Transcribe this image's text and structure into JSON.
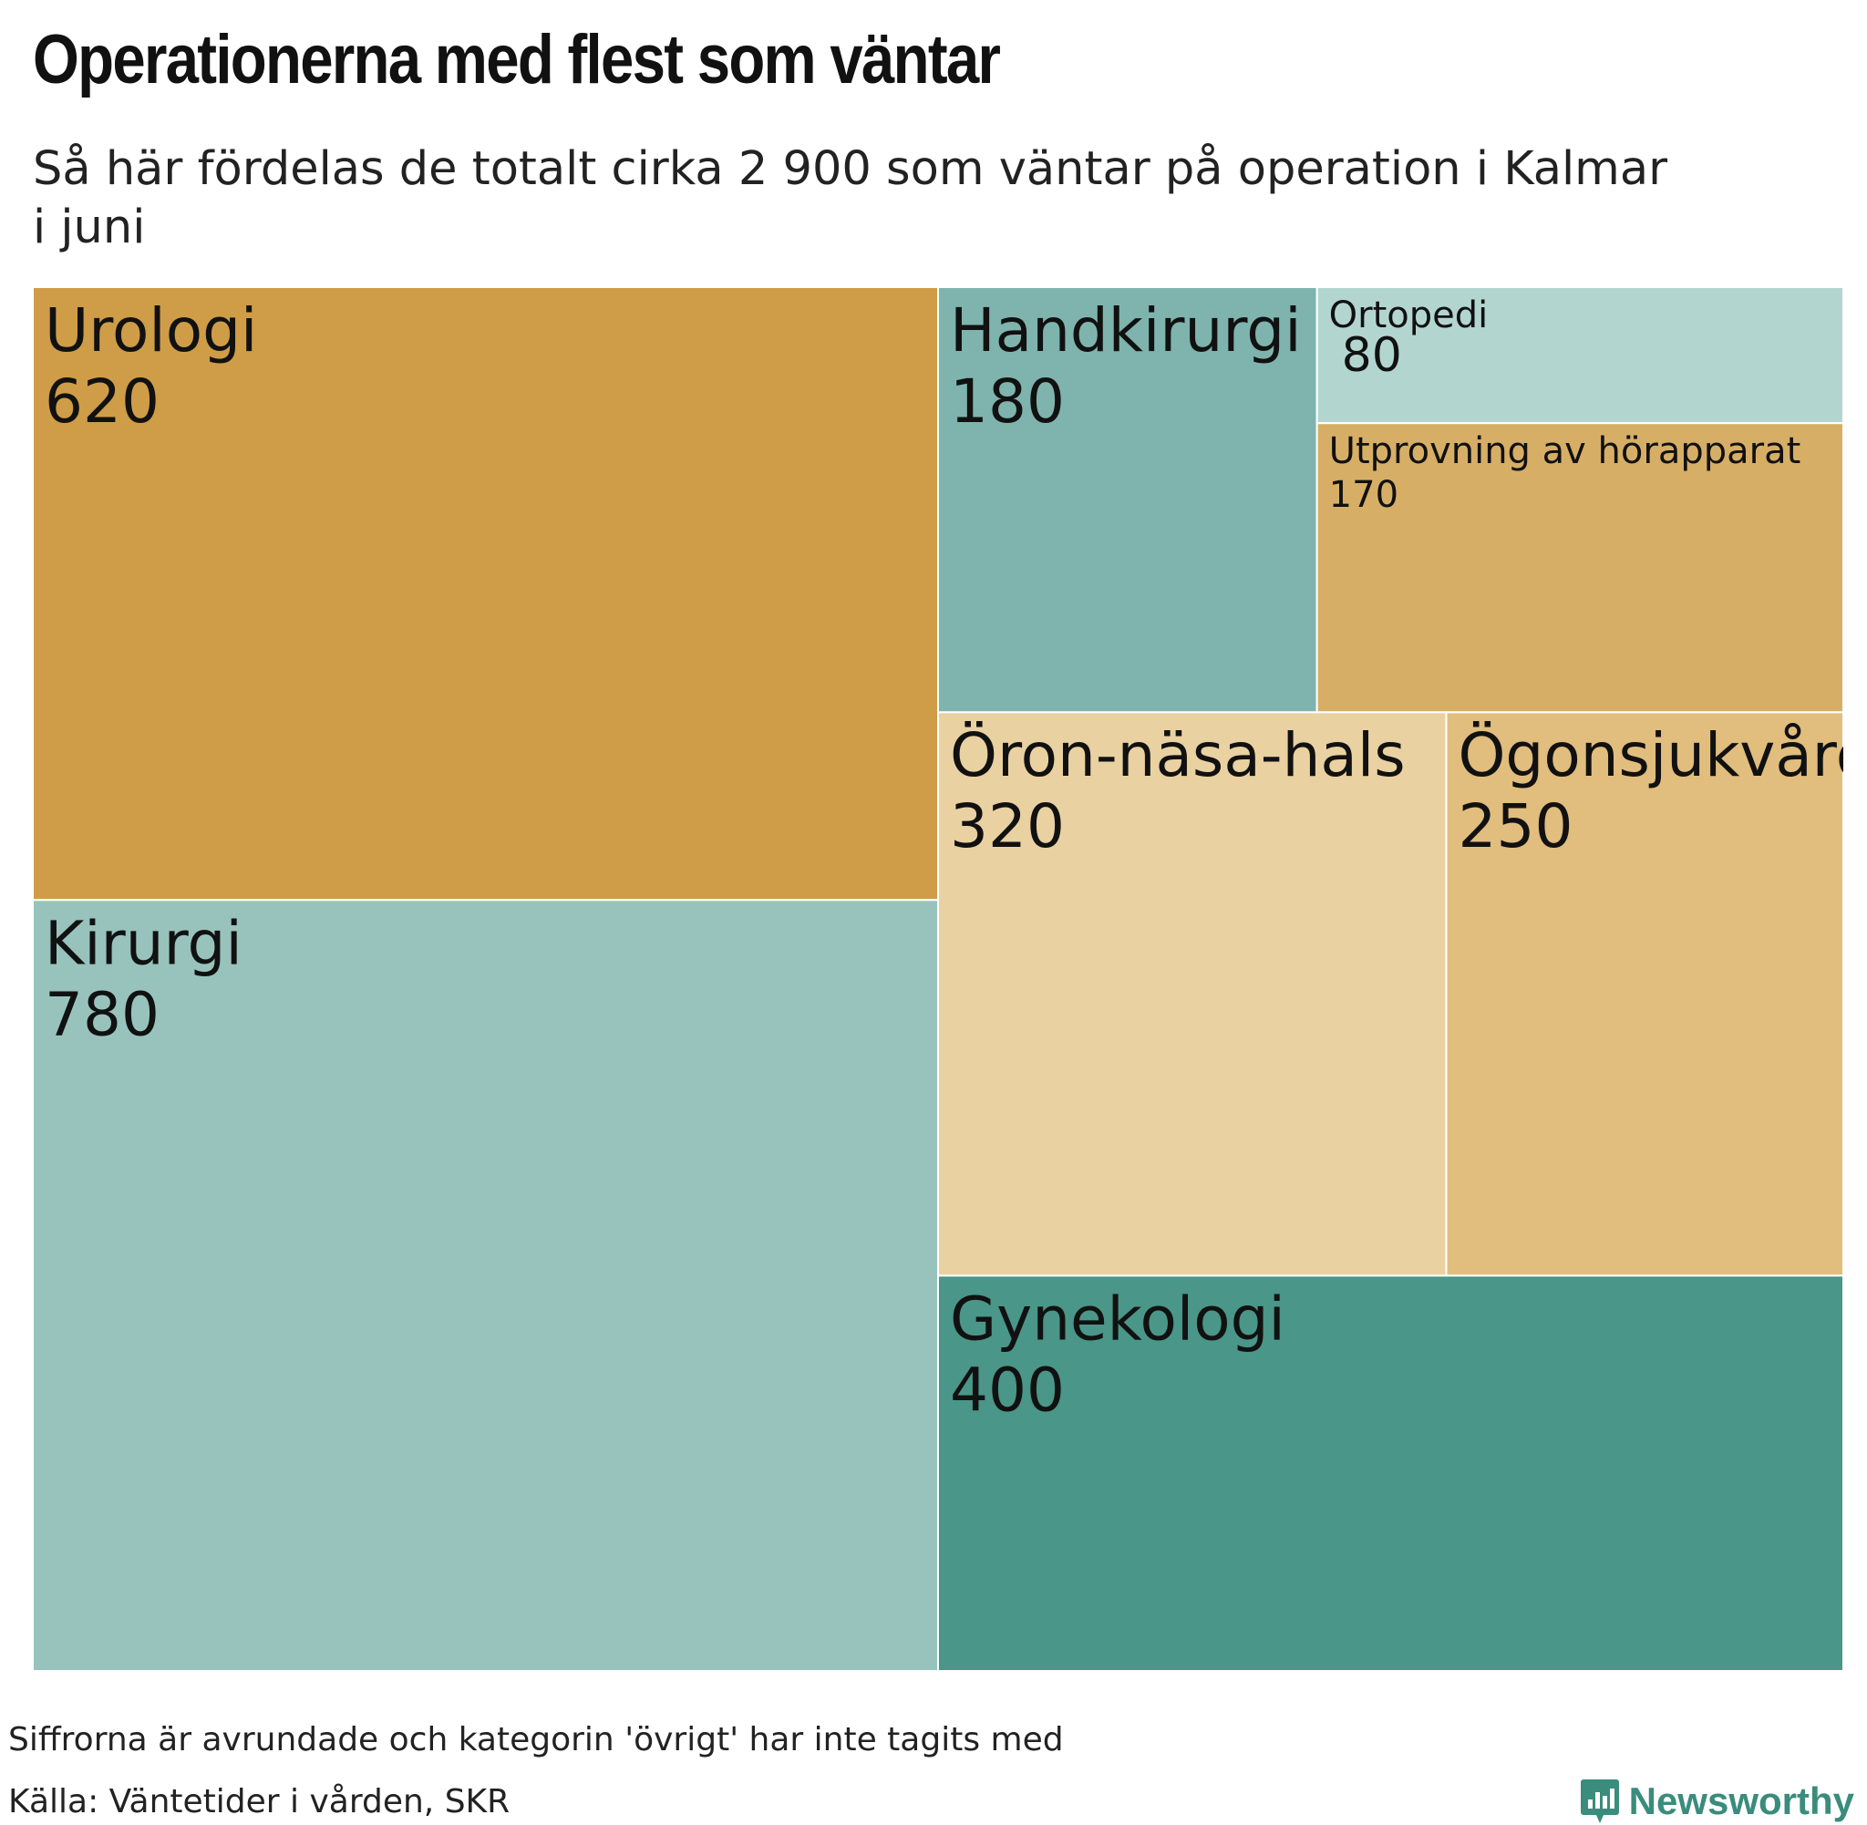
{
  "header": {
    "title": "Operationerna med flest som väntar",
    "subtitle": "Så här fördelas de totalt cirka 2 900 som väntar på operation i Kalmar i juni"
  },
  "chart_data": {
    "type": "treemap",
    "items": [
      {
        "name": "Kirurgi",
        "value": 780,
        "color": "#98c3bd"
      },
      {
        "name": "Urologi",
        "value": 620,
        "color": "#cf9d47"
      },
      {
        "name": "Gynekologi",
        "value": 400,
        "color": "#4a9688"
      },
      {
        "name": "Öron-näsa-hals",
        "value": 320,
        "color": "#e9d1a1"
      },
      {
        "name": "Ögonsjukvård",
        "value": 250,
        "color": "#e1bd7e"
      },
      {
        "name": "Handkirurgi",
        "value": 180,
        "color": "#7eb4ad"
      },
      {
        "name": "Utprovning av hörapparat",
        "value": 170,
        "color": "#d7ae66"
      },
      {
        "name": "Ortopedi",
        "value": 80,
        "color": "#b2d6cf"
      }
    ]
  },
  "footer": {
    "note": "Siffrorna är avrundade och kategorin 'övrigt' har inte tagits med",
    "source": "Källa: Väntetider i vården, SKR",
    "brand": "Newsworthy",
    "brand_icon": "newsworthy-logo-icon"
  }
}
